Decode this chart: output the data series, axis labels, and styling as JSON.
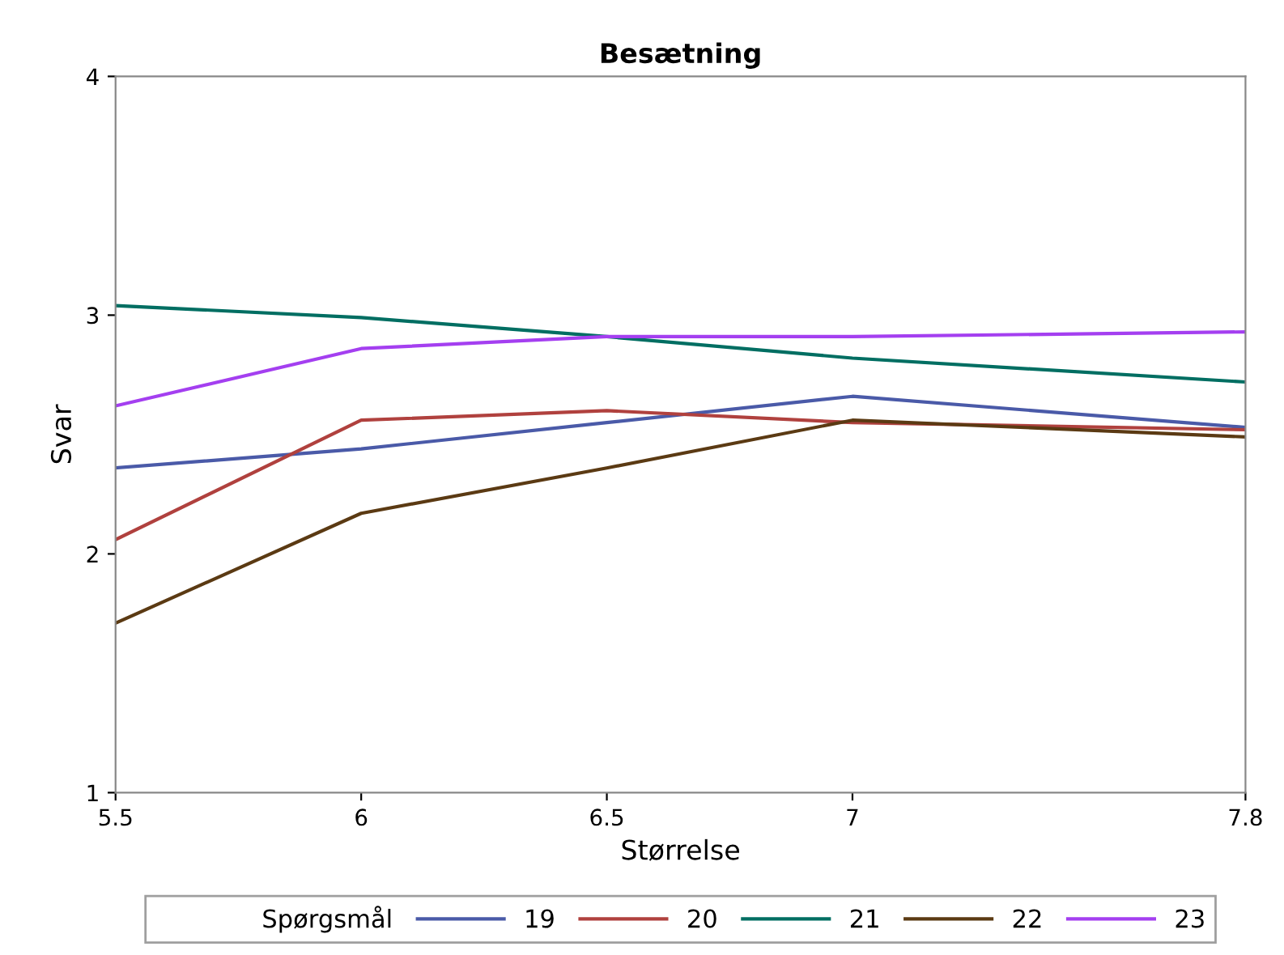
{
  "chart_data": {
    "type": "line",
    "title": "Besætning",
    "xlabel": "Størrelse",
    "ylabel": "Svar",
    "legend_title": "Spørgsmål",
    "x": [
      5.5,
      6,
      6.5,
      7,
      7.8
    ],
    "series": [
      {
        "name": "19",
        "color": "#4a5aa8",
        "values": [
          2.36,
          2.44,
          2.55,
          2.66,
          2.53
        ]
      },
      {
        "name": "20",
        "color": "#b0413e",
        "values": [
          2.06,
          2.56,
          2.6,
          2.55,
          2.52
        ]
      },
      {
        "name": "21",
        "color": "#006e62",
        "values": [
          3.04,
          2.99,
          2.91,
          2.82,
          2.72
        ]
      },
      {
        "name": "22",
        "color": "#5b3a13",
        "values": [
          1.71,
          2.17,
          2.36,
          2.56,
          2.49
        ]
      },
      {
        "name": "23",
        "color": "#a43ff0",
        "values": [
          2.62,
          2.86,
          2.91,
          2.91,
          2.93
        ]
      }
    ],
    "xlim": [
      5.5,
      7.8
    ],
    "xticks": [
      5.5,
      6,
      6.5,
      7,
      7.8
    ],
    "ylim": [
      1,
      4
    ],
    "yticks": [
      1,
      2,
      3,
      4
    ],
    "grid": false,
    "legend": "bottom",
    "marker": "none",
    "line_style": "solid"
  }
}
